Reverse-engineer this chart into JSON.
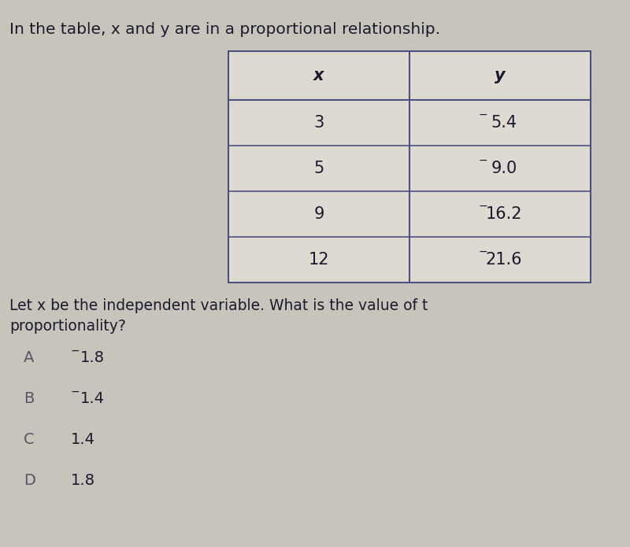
{
  "title": "In the table, x and y are in a proportional relationship.",
  "title_fontsize": 14.5,
  "table_headers": [
    "x",
    "y"
  ],
  "table_rows": [
    [
      "3",
      "5.4"
    ],
    [
      "5",
      "9.0"
    ],
    [
      "9",
      "16.2"
    ],
    [
      "12",
      "21.6"
    ]
  ],
  "question_line1": "Let x be the independent variable. What is the value of t",
  "question_line2": "proportionality?",
  "choices": [
    [
      "A",
      "−1.8",
      true
    ],
    [
      "B",
      "−1.4",
      true
    ],
    [
      "C",
      "1.4",
      false
    ],
    [
      "D",
      "1.8",
      false
    ]
  ],
  "bg_color": "#c8c4bc",
  "table_bg": "#dedad2",
  "table_border_color": "#4a5080",
  "text_color": "#1a1a2e",
  "choice_label_color": "#555566",
  "question_fontsize": 13.5,
  "choice_fontsize": 14,
  "table_fontsize": 15,
  "header_fontsize": 15
}
